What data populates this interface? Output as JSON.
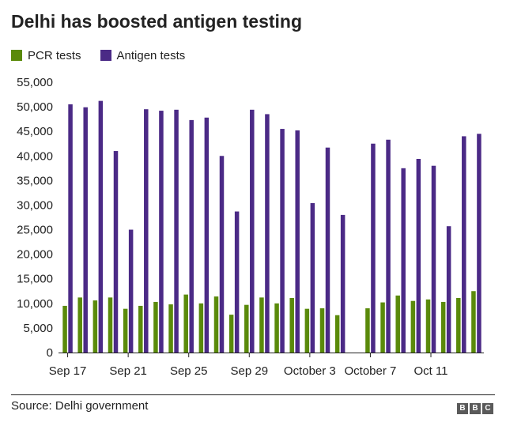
{
  "title": "Delhi has boosted antigen testing",
  "source": "Source: Delhi government",
  "logo": [
    "B",
    "B",
    "C"
  ],
  "colors": {
    "pcr": "#5a8a0a",
    "antigen": "#4b2a86",
    "axis": "#222222",
    "text": "#222222"
  },
  "chart_data": {
    "type": "bar",
    "title": "Delhi has boosted antigen testing",
    "xlabel": "",
    "ylabel": "",
    "ylim": [
      0,
      55000
    ],
    "yticks": [
      0,
      5000,
      10000,
      15000,
      20000,
      25000,
      30000,
      35000,
      40000,
      45000,
      50000,
      55000
    ],
    "ytick_labels": [
      "0",
      "5,000",
      "10,000",
      "15,000",
      "20,000",
      "25,000",
      "30,000",
      "35,000",
      "40,000",
      "45,000",
      "50,000",
      "55,000"
    ],
    "legend": [
      "PCR tests",
      "Antigen tests"
    ],
    "legend_position": "top-left",
    "categories": [
      "Sep 17",
      "Sep 18",
      "Sep 19",
      "Sep 20",
      "Sep 21",
      "Sep 22",
      "Sep 23",
      "Sep 24",
      "Sep 25",
      "Sep 26",
      "Sep 27",
      "Sep 28",
      "Sep 29",
      "Sep 30",
      "Oct 1",
      "Oct 2",
      "Oct 3",
      "Oct 4",
      "Oct 5",
      "Oct 6",
      "Oct 7",
      "Oct 8",
      "Oct 9",
      "Oct 10",
      "Oct 11",
      "Oct 12",
      "Oct 13",
      "Oct 14"
    ],
    "x_tick_labels": [
      {
        "index": 0,
        "label": "Sep 17"
      },
      {
        "index": 4,
        "label": "Sep 21"
      },
      {
        "index": 8,
        "label": "Sep 25"
      },
      {
        "index": 12,
        "label": "Sep 29"
      },
      {
        "index": 16,
        "label": "October 3"
      },
      {
        "index": 20,
        "label": "October 7"
      },
      {
        "index": 24,
        "label": "Oct 11"
      }
    ],
    "series": [
      {
        "name": "PCR tests",
        "values": [
          9500,
          11200,
          10600,
          11200,
          8900,
          9500,
          10300,
          9800,
          11800,
          10000,
          11400,
          7700,
          9700,
          11200,
          10000,
          11100,
          8900,
          9000,
          7600,
          null,
          9000,
          10200,
          11600,
          10500,
          10800,
          10300,
          11100,
          12500
        ]
      },
      {
        "name": "Antigen tests",
        "values": [
          50500,
          49900,
          51200,
          41000,
          25000,
          49500,
          49200,
          49400,
          47300,
          47800,
          40000,
          28700,
          49400,
          48500,
          45500,
          45200,
          30400,
          41700,
          28000,
          null,
          42500,
          43300,
          37500,
          39400,
          38000,
          25700,
          44000,
          44500
        ]
      }
    ]
  }
}
